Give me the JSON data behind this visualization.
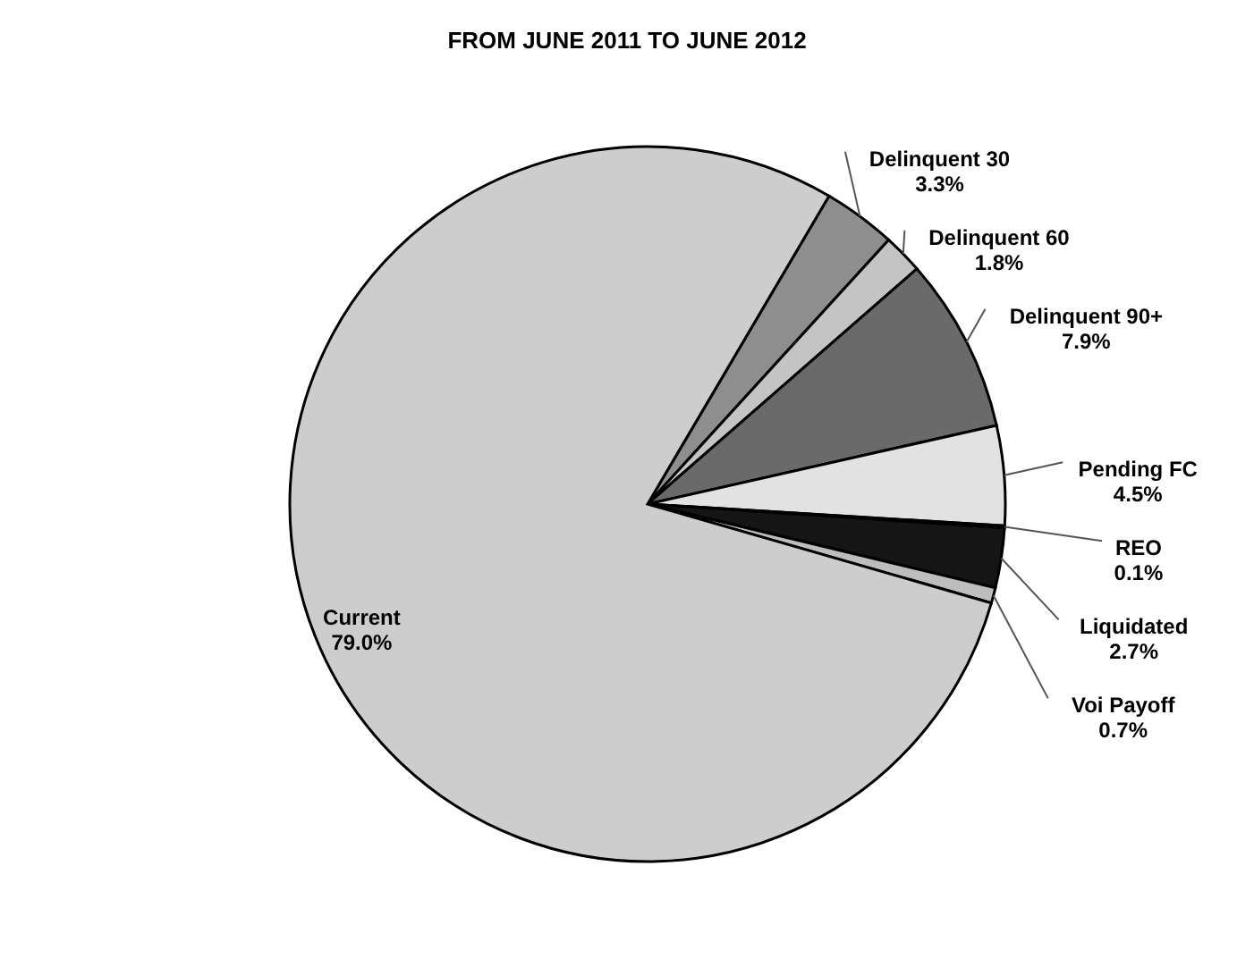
{
  "chart_data": {
    "type": "pie",
    "title": "FROM JUNE 2011 TO JUNE 2012",
    "categories": [
      "Delinquent 30",
      "Delinquent 60",
      "Delinquent 90+",
      "Pending FC",
      "REO",
      "Liquidated",
      "Voi Payoff",
      "Current"
    ],
    "values": [
      3.3,
      1.8,
      7.9,
      4.5,
      0.1,
      2.7,
      0.7,
      79.0
    ],
    "value_labels": [
      "3.3%",
      "1.8%",
      "7.9%",
      "4.5%",
      "0.1%",
      "2.7%",
      "0.7%",
      "79.0%"
    ],
    "colors": [
      "#8e8e8e",
      "#c4c4c4",
      "#6a6a6a",
      "#e2e2e2",
      "#f4f4f4",
      "#151515",
      "#bdbdbd",
      "#cdcdcd"
    ]
  }
}
